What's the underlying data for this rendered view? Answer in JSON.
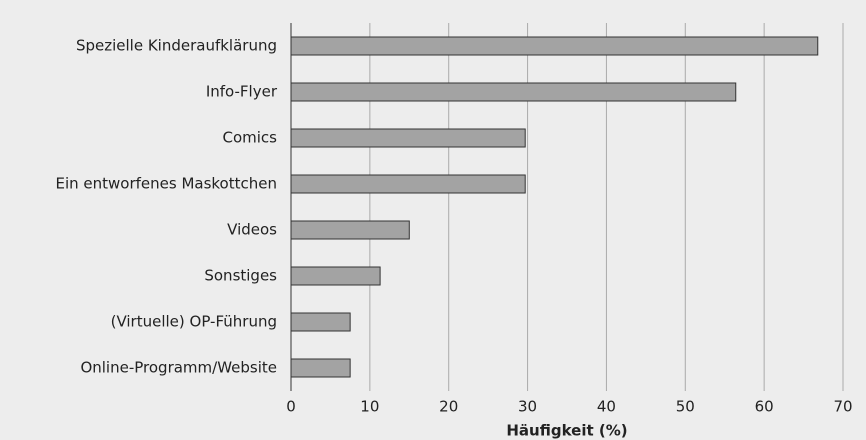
{
  "chart_data": {
    "type": "barh",
    "categories": [
      "Spezielle Kinderaufklärung",
      "Info-Flyer",
      "Comics",
      "Ein entworfenes Maskottchen",
      "Videos",
      "Sonstiges",
      "(Virtuelle) OP-Führung",
      "Online-Programm/Website"
    ],
    "values": [
      66.8,
      56.4,
      29.7,
      29.7,
      15,
      11.3,
      7.5,
      7.5
    ],
    "color": "#a3a3a3",
    "xlabel": "Häufigkeit (%)",
    "xlim": [
      0,
      70
    ],
    "xticks": [
      0,
      10,
      20,
      30,
      40,
      50,
      60,
      70
    ],
    "grid": true
  }
}
